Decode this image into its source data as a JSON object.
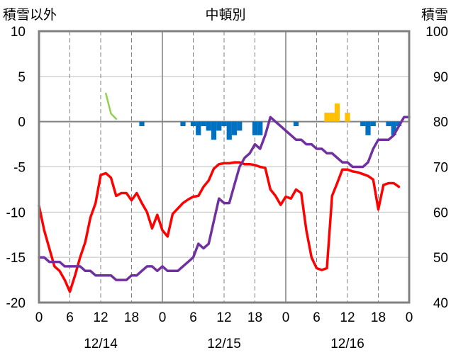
{
  "chart_data": {
    "type": "line",
    "title": "中頓別",
    "ylabel_left": "積雪以外",
    "ylabel_right": "積雪",
    "ylim_left": [
      -20,
      10
    ],
    "ylim_right": [
      40,
      100
    ],
    "yticks_left": [
      "10",
      "5",
      "0",
      "-5",
      "-10",
      "-15",
      "-20"
    ],
    "yticks_right": [
      "100",
      "90",
      "80",
      "70",
      "60",
      "50",
      "40"
    ],
    "xlim_hours": [
      0,
      72
    ],
    "xticks": [
      "0",
      "6",
      "12",
      "18",
      "0",
      "6",
      "12",
      "18",
      "0",
      "6",
      "12",
      "18",
      "0"
    ],
    "day_labels": [
      "12/14",
      "12/15",
      "12/16"
    ],
    "grid": true,
    "series": [
      {
        "axis": "left",
        "color": "#ff0000",
        "values": [
          -9.3,
          -12,
          -14,
          -16,
          -16.5,
          -17.5,
          -18.8,
          -17,
          -15,
          -13.3,
          -10.6,
          -9,
          -5.9,
          -5.7,
          -6.2,
          -8.2,
          -7.9,
          -7.9,
          -8.7,
          -7.9,
          -9,
          -10,
          -11.8,
          -10.3,
          -12,
          -12.7,
          -10.2,
          -9.6,
          -9,
          -8.6,
          -8.3,
          -8.2,
          -7.2,
          -6.5,
          -5.2,
          -4.7,
          -4.6,
          -4.6,
          -4.5,
          -4.5,
          -4.7,
          -4.7,
          -4.8,
          -5,
          -5.1,
          -7.5,
          -8.2,
          -9.2,
          -8.3,
          -8.5,
          -7.5,
          -7.9,
          -12,
          -15,
          -16.2,
          -16.4,
          -16.2,
          -8.2,
          -6.8,
          -5.3,
          -5.3,
          -5.5,
          -5.6,
          -5.8,
          -6,
          -6.4,
          -9.7,
          -7,
          -6.8,
          -6.8,
          -7.2
        ]
      },
      {
        "axis": "right",
        "color": "#7030a0",
        "values": [
          50,
          50,
          49,
          49,
          49,
          48,
          48,
          48,
          48,
          47,
          47,
          46,
          46,
          46,
          46,
          45,
          45,
          45,
          46,
          46,
          47,
          48,
          48,
          47,
          48,
          47,
          47,
          47,
          48,
          49,
          50,
          53,
          52,
          53,
          58,
          63,
          62,
          62,
          66,
          70,
          72,
          73,
          75,
          74,
          77,
          81,
          80,
          79,
          78,
          77,
          76,
          76,
          75,
          75,
          74,
          74,
          73,
          73,
          72,
          71,
          71,
          70,
          70,
          70,
          71,
          74,
          76,
          76,
          76,
          77,
          79,
          81,
          81
        ]
      },
      {
        "axis": "left",
        "color": "#92d050",
        "start_hour": 13,
        "values": [
          3.1,
          0.9,
          0.3
        ]
      }
    ],
    "bars_positive": {
      "color": "#ffc000",
      "hours": [
        56,
        57,
        58,
        60
      ],
      "values": [
        1,
        1,
        2,
        1
      ]
    },
    "bars_negative": {
      "color": "#0070c0",
      "hours": [
        20,
        28,
        30,
        31,
        32,
        33,
        34,
        35,
        36,
        37,
        38,
        39,
        42,
        43,
        50,
        63,
        64,
        65,
        68,
        69,
        70
      ],
      "values": [
        -0.5,
        -0.5,
        -0.5,
        -1.5,
        -0.5,
        -1,
        -2,
        -1,
        -0.5,
        -2,
        -1.5,
        -1,
        -1.5,
        -1.5,
        -0.5,
        -0.5,
        -1.5,
        -0.5,
        -0.5,
        -1.5,
        -0.5
      ]
    }
  }
}
